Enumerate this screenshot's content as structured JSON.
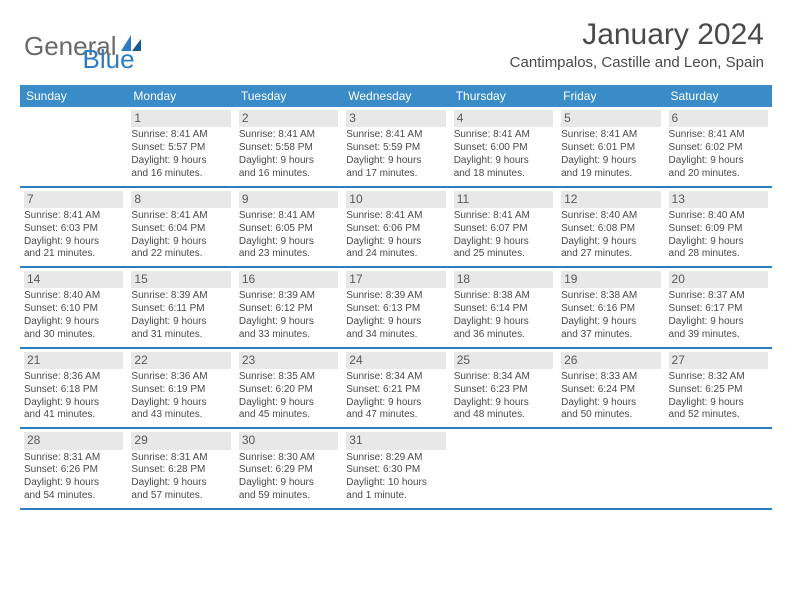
{
  "brand": {
    "word1": "General",
    "word2": "Blue"
  },
  "title": "January 2024",
  "location": "Cantimpalos, Castille and Leon, Spain",
  "colors": {
    "header_bg": "#3a8cc8",
    "border": "#2d7cc0",
    "daynum_bg": "#e8e8e8",
    "text": "#4a4a4a",
    "brand_gray": "#6a6a6a",
    "brand_blue": "#2d7cc0"
  },
  "day_headers": [
    "Sunday",
    "Monday",
    "Tuesday",
    "Wednesday",
    "Thursday",
    "Friday",
    "Saturday"
  ],
  "weeks": [
    [
      {
        "num": "",
        "lines": []
      },
      {
        "num": "1",
        "lines": [
          "Sunrise: 8:41 AM",
          "Sunset: 5:57 PM",
          "Daylight: 9 hours",
          "and 16 minutes."
        ]
      },
      {
        "num": "2",
        "lines": [
          "Sunrise: 8:41 AM",
          "Sunset: 5:58 PM",
          "Daylight: 9 hours",
          "and 16 minutes."
        ]
      },
      {
        "num": "3",
        "lines": [
          "Sunrise: 8:41 AM",
          "Sunset: 5:59 PM",
          "Daylight: 9 hours",
          "and 17 minutes."
        ]
      },
      {
        "num": "4",
        "lines": [
          "Sunrise: 8:41 AM",
          "Sunset: 6:00 PM",
          "Daylight: 9 hours",
          "and 18 minutes."
        ]
      },
      {
        "num": "5",
        "lines": [
          "Sunrise: 8:41 AM",
          "Sunset: 6:01 PM",
          "Daylight: 9 hours",
          "and 19 minutes."
        ]
      },
      {
        "num": "6",
        "lines": [
          "Sunrise: 8:41 AM",
          "Sunset: 6:02 PM",
          "Daylight: 9 hours",
          "and 20 minutes."
        ]
      }
    ],
    [
      {
        "num": "7",
        "lines": [
          "Sunrise: 8:41 AM",
          "Sunset: 6:03 PM",
          "Daylight: 9 hours",
          "and 21 minutes."
        ]
      },
      {
        "num": "8",
        "lines": [
          "Sunrise: 8:41 AM",
          "Sunset: 6:04 PM",
          "Daylight: 9 hours",
          "and 22 minutes."
        ]
      },
      {
        "num": "9",
        "lines": [
          "Sunrise: 8:41 AM",
          "Sunset: 6:05 PM",
          "Daylight: 9 hours",
          "and 23 minutes."
        ]
      },
      {
        "num": "10",
        "lines": [
          "Sunrise: 8:41 AM",
          "Sunset: 6:06 PM",
          "Daylight: 9 hours",
          "and 24 minutes."
        ]
      },
      {
        "num": "11",
        "lines": [
          "Sunrise: 8:41 AM",
          "Sunset: 6:07 PM",
          "Daylight: 9 hours",
          "and 25 minutes."
        ]
      },
      {
        "num": "12",
        "lines": [
          "Sunrise: 8:40 AM",
          "Sunset: 6:08 PM",
          "Daylight: 9 hours",
          "and 27 minutes."
        ]
      },
      {
        "num": "13",
        "lines": [
          "Sunrise: 8:40 AM",
          "Sunset: 6:09 PM",
          "Daylight: 9 hours",
          "and 28 minutes."
        ]
      }
    ],
    [
      {
        "num": "14",
        "lines": [
          "Sunrise: 8:40 AM",
          "Sunset: 6:10 PM",
          "Daylight: 9 hours",
          "and 30 minutes."
        ]
      },
      {
        "num": "15",
        "lines": [
          "Sunrise: 8:39 AM",
          "Sunset: 6:11 PM",
          "Daylight: 9 hours",
          "and 31 minutes."
        ]
      },
      {
        "num": "16",
        "lines": [
          "Sunrise: 8:39 AM",
          "Sunset: 6:12 PM",
          "Daylight: 9 hours",
          "and 33 minutes."
        ]
      },
      {
        "num": "17",
        "lines": [
          "Sunrise: 8:39 AM",
          "Sunset: 6:13 PM",
          "Daylight: 9 hours",
          "and 34 minutes."
        ]
      },
      {
        "num": "18",
        "lines": [
          "Sunrise: 8:38 AM",
          "Sunset: 6:14 PM",
          "Daylight: 9 hours",
          "and 36 minutes."
        ]
      },
      {
        "num": "19",
        "lines": [
          "Sunrise: 8:38 AM",
          "Sunset: 6:16 PM",
          "Daylight: 9 hours",
          "and 37 minutes."
        ]
      },
      {
        "num": "20",
        "lines": [
          "Sunrise: 8:37 AM",
          "Sunset: 6:17 PM",
          "Daylight: 9 hours",
          "and 39 minutes."
        ]
      }
    ],
    [
      {
        "num": "21",
        "lines": [
          "Sunrise: 8:36 AM",
          "Sunset: 6:18 PM",
          "Daylight: 9 hours",
          "and 41 minutes."
        ]
      },
      {
        "num": "22",
        "lines": [
          "Sunrise: 8:36 AM",
          "Sunset: 6:19 PM",
          "Daylight: 9 hours",
          "and 43 minutes."
        ]
      },
      {
        "num": "23",
        "lines": [
          "Sunrise: 8:35 AM",
          "Sunset: 6:20 PM",
          "Daylight: 9 hours",
          "and 45 minutes."
        ]
      },
      {
        "num": "24",
        "lines": [
          "Sunrise: 8:34 AM",
          "Sunset: 6:21 PM",
          "Daylight: 9 hours",
          "and 47 minutes."
        ]
      },
      {
        "num": "25",
        "lines": [
          "Sunrise: 8:34 AM",
          "Sunset: 6:23 PM",
          "Daylight: 9 hours",
          "and 48 minutes."
        ]
      },
      {
        "num": "26",
        "lines": [
          "Sunrise: 8:33 AM",
          "Sunset: 6:24 PM",
          "Daylight: 9 hours",
          "and 50 minutes."
        ]
      },
      {
        "num": "27",
        "lines": [
          "Sunrise: 8:32 AM",
          "Sunset: 6:25 PM",
          "Daylight: 9 hours",
          "and 52 minutes."
        ]
      }
    ],
    [
      {
        "num": "28",
        "lines": [
          "Sunrise: 8:31 AM",
          "Sunset: 6:26 PM",
          "Daylight: 9 hours",
          "and 54 minutes."
        ]
      },
      {
        "num": "29",
        "lines": [
          "Sunrise: 8:31 AM",
          "Sunset: 6:28 PM",
          "Daylight: 9 hours",
          "and 57 minutes."
        ]
      },
      {
        "num": "30",
        "lines": [
          "Sunrise: 8:30 AM",
          "Sunset: 6:29 PM",
          "Daylight: 9 hours",
          "and 59 minutes."
        ]
      },
      {
        "num": "31",
        "lines": [
          "Sunrise: 8:29 AM",
          "Sunset: 6:30 PM",
          "Daylight: 10 hours",
          "and 1 minute."
        ]
      },
      {
        "num": "",
        "lines": []
      },
      {
        "num": "",
        "lines": []
      },
      {
        "num": "",
        "lines": []
      }
    ]
  ]
}
